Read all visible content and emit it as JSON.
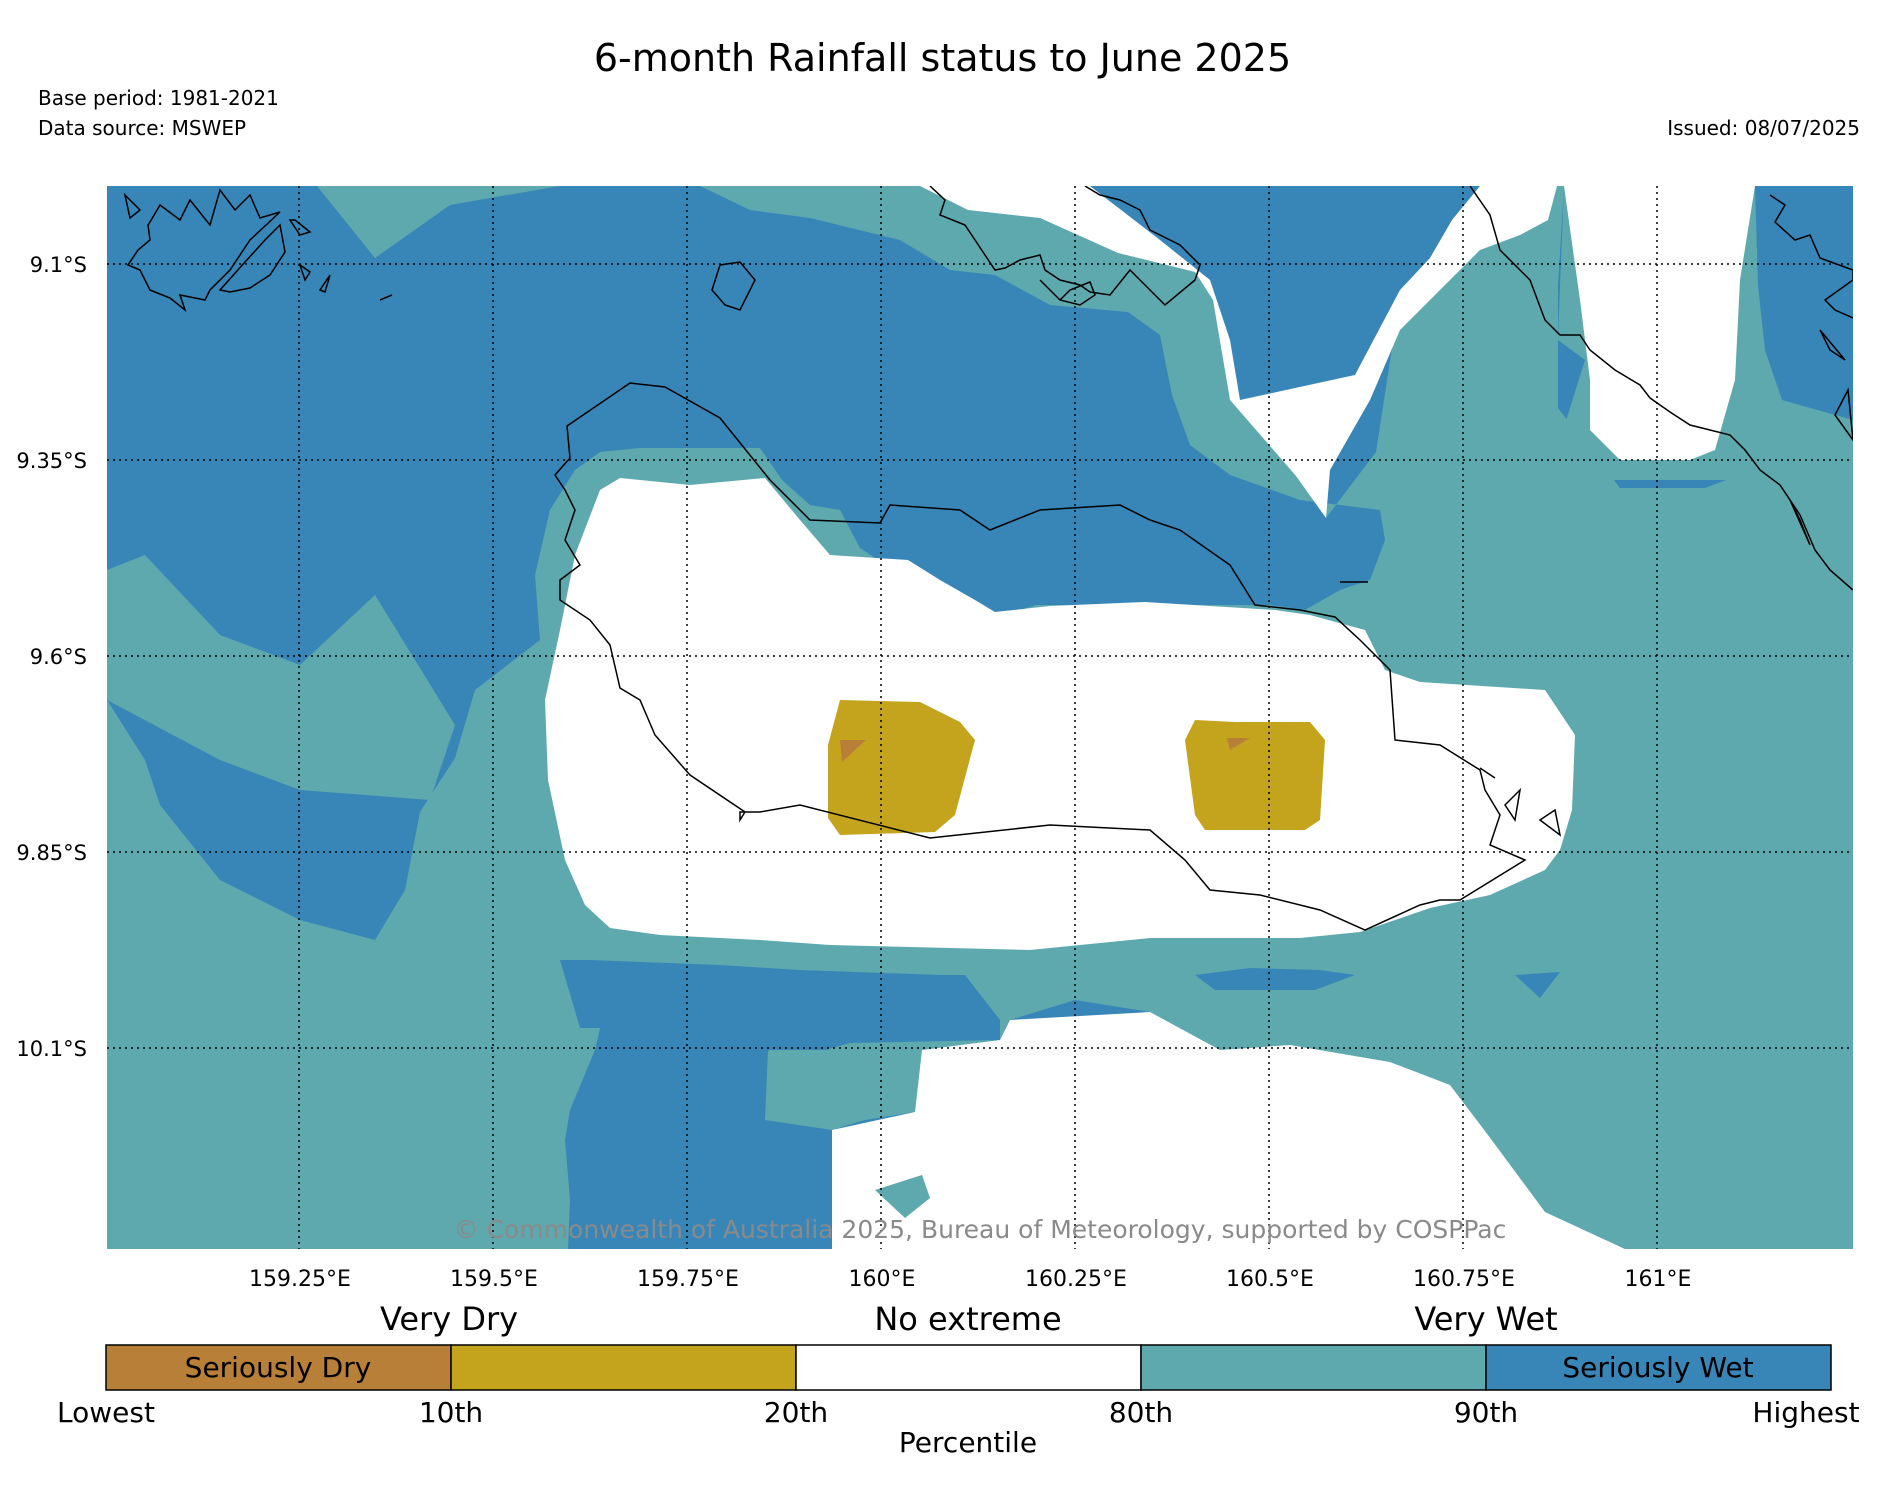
{
  "title": "6-month Rainfall status to June 2025",
  "base_period": "Base period: 1981-2021",
  "data_source": "Data source: MSWEP",
  "issued": "Issued: 08/07/2025",
  "copyright": "© Commonwealth of Australia 2025, Bureau of Meteorology, supported by COSPPac",
  "map": {
    "latitude_labels": [
      "9.1°S",
      "9.35°S",
      "9.6°S",
      "9.85°S",
      "10.1°S"
    ],
    "longitude_labels": [
      "159.25°E",
      "159.5°E",
      "159.75°E",
      "160°E",
      "160.25°E",
      "160.5°E",
      "160.75°E",
      "161°E"
    ],
    "gridlines": "dotted"
  },
  "legend": {
    "category_labels": [
      "Very Dry",
      "No extreme",
      "Very Wet"
    ],
    "boxes": [
      {
        "label": "Seriously Dry",
        "color": "#b87f38"
      },
      {
        "label": "",
        "color": "#c4a31d"
      },
      {
        "label": "",
        "color": "#ffffff"
      },
      {
        "label": "",
        "color": "#5ea9ae"
      },
      {
        "label": "Seriously Wet",
        "color": "#3886b8"
      }
    ],
    "percentile_labels": [
      "Lowest",
      "10th",
      "20th",
      "80th",
      "90th",
      "Highest"
    ],
    "axis_label": "Percentile"
  },
  "colors": {
    "seriously_dry": "#b87f38",
    "very_dry": "#c4a31d",
    "no_extreme": "#ffffff",
    "very_wet": "#5ea9ae",
    "seriously_wet": "#3886b8"
  }
}
